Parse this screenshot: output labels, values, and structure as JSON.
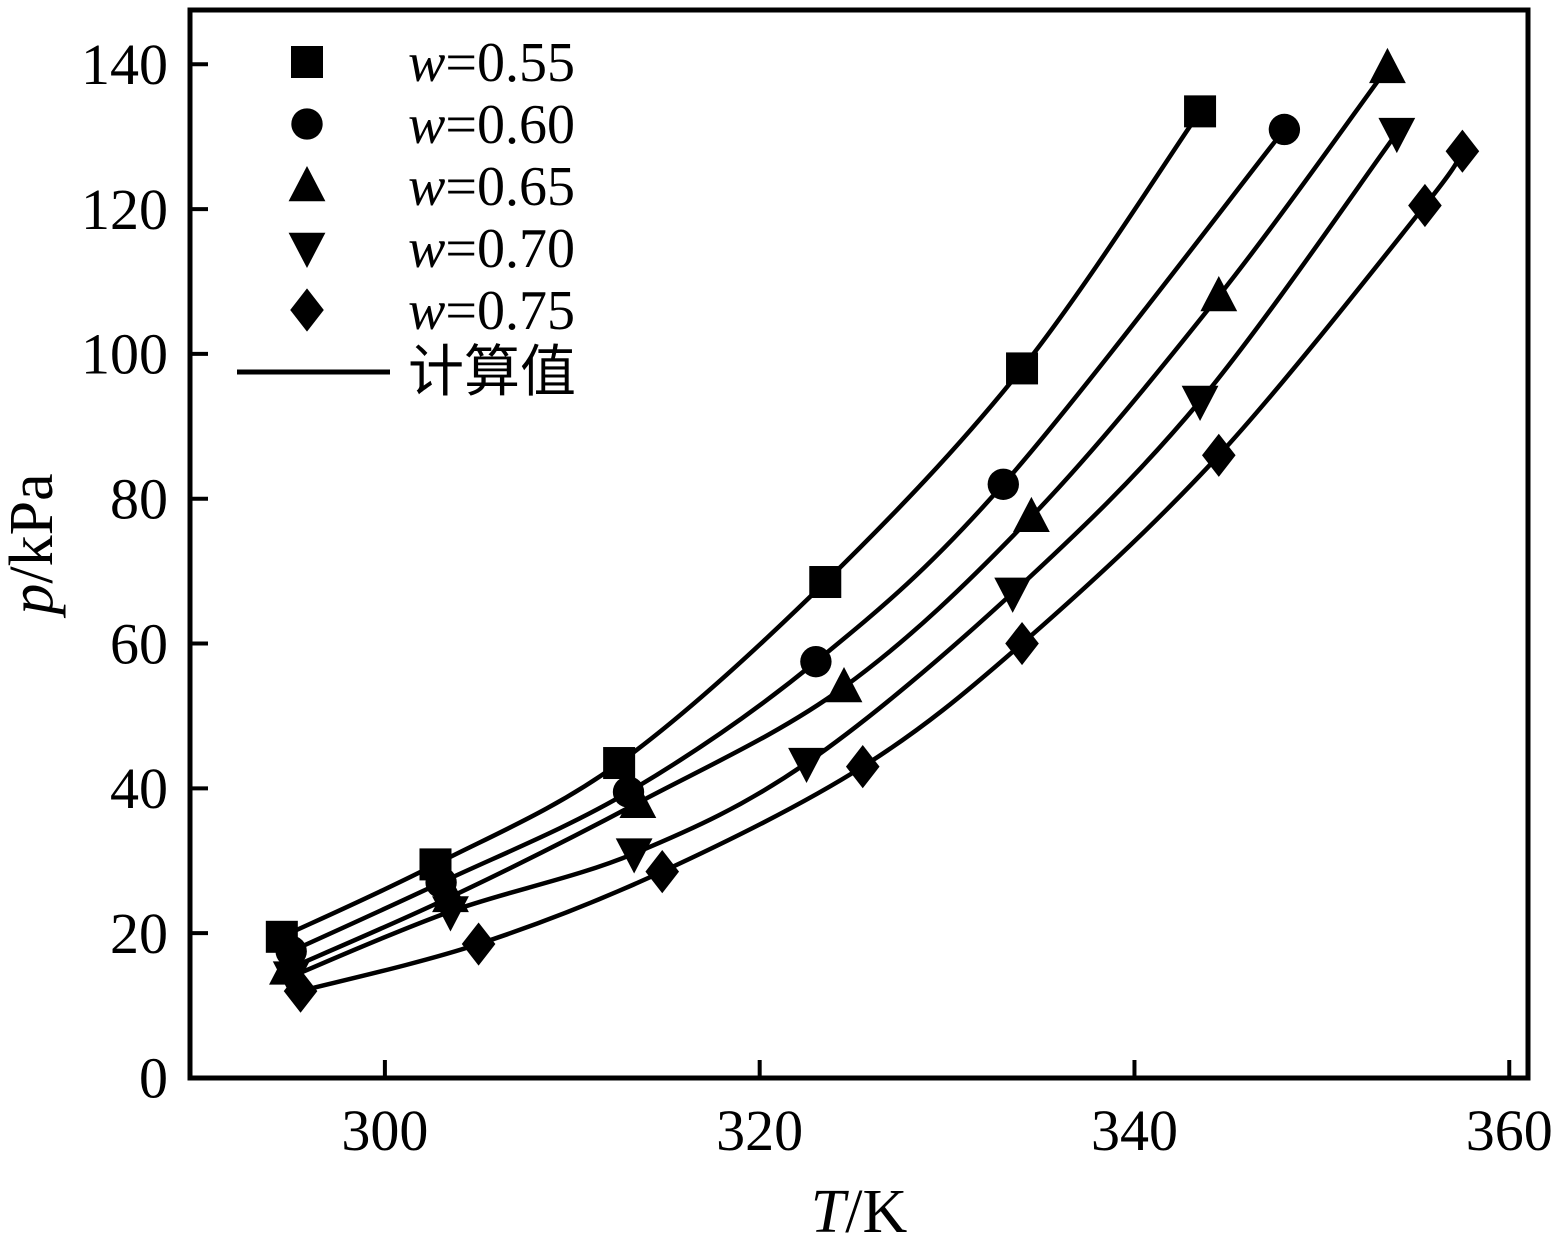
{
  "figure": {
    "description": "Vapor pressure versus temperature for solutions of different mass fraction w, experimental points with calculated curves"
  },
  "colors": {
    "foreground": "#000000",
    "background": "#ffffff"
  },
  "chart_data": {
    "type": "line",
    "title": "",
    "xlabel": "T/K",
    "ylabel": "p/kPa",
    "xlim": [
      289.6,
      361.0
    ],
    "ylim": [
      0,
      147.5
    ],
    "xticks": [
      300,
      320,
      340,
      360
    ],
    "yticks": [
      0,
      20,
      40,
      60,
      80,
      100,
      120,
      140
    ],
    "grid": false,
    "legend_position": "top-left",
    "line_legend_label": "计算值",
    "series": [
      {
        "name": "w=0.55",
        "marker": "square",
        "points": [
          [
            294.5,
            19.5
          ],
          [
            302.7,
            29.5
          ],
          [
            312.5,
            43.5
          ],
          [
            323.5,
            68.5
          ],
          [
            334.0,
            98.0
          ],
          [
            343.5,
            133.5
          ]
        ]
      },
      {
        "name": "w=0.60",
        "marker": "circle",
        "points": [
          [
            295.0,
            17.5
          ],
          [
            303.0,
            27.0
          ],
          [
            313.0,
            39.5
          ],
          [
            323.0,
            57.5
          ],
          [
            333.0,
            82.0
          ],
          [
            348.0,
            131.0
          ]
        ]
      },
      {
        "name": "w=0.65",
        "marker": "triangle-up",
        "points": [
          [
            294.8,
            15.0
          ],
          [
            303.5,
            25.0
          ],
          [
            313.5,
            38.0
          ],
          [
            324.5,
            54.0
          ],
          [
            334.5,
            77.5
          ],
          [
            344.5,
            108.0
          ],
          [
            353.5,
            139.5
          ]
        ]
      },
      {
        "name": "w=0.70",
        "marker": "triangle-down",
        "points": [
          [
            295.0,
            14.0
          ],
          [
            303.5,
            23.0
          ],
          [
            313.3,
            31.0
          ],
          [
            322.5,
            43.5
          ],
          [
            333.5,
            67.0
          ],
          [
            343.5,
            93.5
          ],
          [
            354.0,
            130.5
          ]
        ]
      },
      {
        "name": "w=0.75",
        "marker": "diamond",
        "points": [
          [
            295.5,
            12.0
          ],
          [
            305.0,
            18.5
          ],
          [
            314.8,
            28.5
          ],
          [
            325.5,
            43.0
          ],
          [
            334.0,
            60.0
          ],
          [
            344.5,
            86.0
          ],
          [
            355.5,
            120.5
          ],
          [
            357.5,
            128.0
          ]
        ]
      }
    ]
  }
}
